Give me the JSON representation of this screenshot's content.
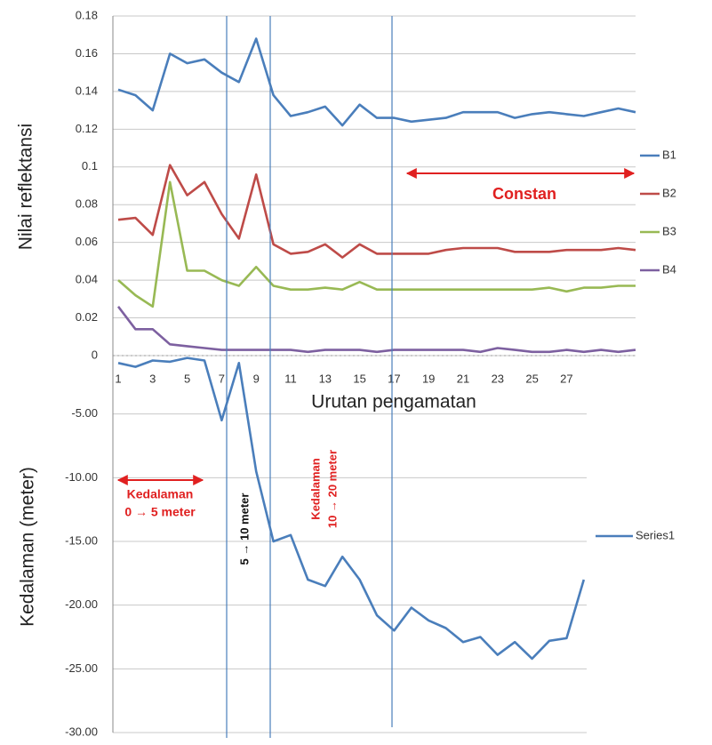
{
  "chart_data": [
    {
      "type": "line",
      "y_label": "Nilai reflektansi",
      "x_label": "Urutan pengamatan",
      "categories": [
        "1",
        null,
        "3",
        null,
        "5",
        null,
        "7",
        null,
        "9",
        null,
        "11",
        null,
        "13",
        null,
        "15",
        null,
        "17",
        null,
        "19",
        null,
        "21",
        null,
        "23",
        null,
        "25",
        null,
        "27",
        null,
        null,
        null,
        null
      ],
      "ylim": [
        0,
        0.18
      ],
      "yticks": [
        0,
        0.02,
        0.04,
        0.06,
        0.08,
        0.1,
        0.12,
        0.14,
        0.16,
        0.18
      ],
      "grid": true,
      "legend": "right",
      "annotations": [
        "Constan"
      ],
      "series": [
        {
          "name": "B1",
          "color": "#4a7ebb",
          "values": [
            0.141,
            0.138,
            0.13,
            0.16,
            0.155,
            0.157,
            0.15,
            0.145,
            0.168,
            0.138,
            0.127,
            0.129,
            0.132,
            0.122,
            0.133,
            0.126,
            0.126,
            0.124,
            0.125,
            0.126,
            0.129,
            0.129,
            0.129,
            0.126,
            0.128,
            0.129,
            0.128,
            0.127,
            0.129,
            0.131,
            0.129
          ]
        },
        {
          "name": "B2",
          "color": "#be4b48",
          "values": [
            0.072,
            0.073,
            0.064,
            0.101,
            0.085,
            0.092,
            0.075,
            0.062,
            0.096,
            0.059,
            0.054,
            0.055,
            0.059,
            0.052,
            0.059,
            0.054,
            0.054,
            0.054,
            0.054,
            0.056,
            0.057,
            0.057,
            0.057,
            0.055,
            0.055,
            0.055,
            0.056,
            0.056,
            0.056,
            0.057,
            0.056
          ]
        },
        {
          "name": "B3",
          "color": "#98b954",
          "values": [
            0.04,
            0.032,
            0.026,
            0.092,
            0.045,
            0.045,
            0.04,
            0.037,
            0.047,
            0.037,
            0.035,
            0.035,
            0.036,
            0.035,
            0.039,
            0.035,
            0.035,
            0.035,
            0.035,
            0.035,
            0.035,
            0.035,
            0.035,
            0.035,
            0.035,
            0.036,
            0.034,
            0.036,
            0.036,
            0.037,
            0.037
          ]
        },
        {
          "name": "B4",
          "color": "#7d60a0",
          "values": [
            0.026,
            0.014,
            0.014,
            0.006,
            0.005,
            0.004,
            0.003,
            0.003,
            0.003,
            0.003,
            0.003,
            0.002,
            0.003,
            0.003,
            0.003,
            0.002,
            0.003,
            0.003,
            0.003,
            0.003,
            0.003,
            0.002,
            0.004,
            0.003,
            0.002,
            0.002,
            0.003,
            0.002,
            0.003,
            0.002,
            0.003
          ]
        }
      ]
    },
    {
      "type": "line",
      "y_label": "Kedalaman (meter)",
      "ylim": [
        -30,
        0
      ],
      "yticks": [
        {
          "value": -5,
          "label": "-5.00"
        },
        {
          "value": -10,
          "label": "-10.00"
        },
        {
          "value": -15,
          "label": "-15.00"
        },
        {
          "value": -20,
          "label": "-20.00"
        },
        {
          "value": -25,
          "label": "-25.00"
        },
        {
          "value": -30,
          "label": "-30.00"
        }
      ],
      "grid": true,
      "legend": "right",
      "annotations": [
        "Kedalaman",
        "0 → 5 meter",
        "5 → 10 meter",
        "Kedalaman",
        "10 → 20 meter"
      ],
      "series": [
        {
          "name": "Series1",
          "color": "#4a7ebb",
          "values": [
            -1,
            -1.3,
            -0.8,
            -0.9,
            -0.6,
            -0.8,
            -5.5,
            -1,
            -9.5,
            -15,
            -14.5,
            -18,
            -18.5,
            -16.2,
            -18,
            -20.8,
            -22,
            -20.2,
            -21.2,
            -21.8,
            -22.9,
            -22.5,
            -23.9,
            -22.9,
            -24.2,
            -22.8,
            -22.6,
            -18
          ]
        }
      ]
    }
  ]
}
